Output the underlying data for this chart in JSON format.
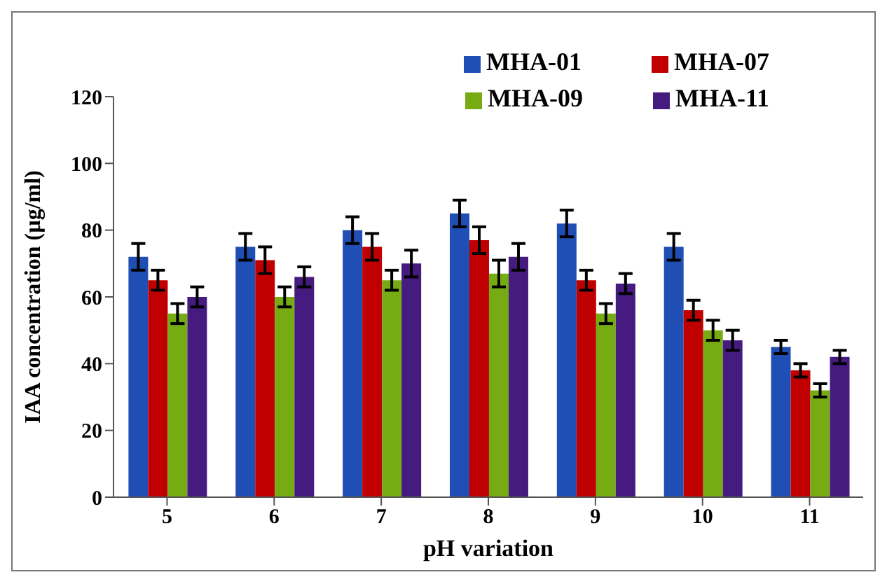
{
  "chart_data": {
    "type": "bar",
    "xlabel": "pH variation",
    "ylabel": "IAA concentration (µg/ml)",
    "categories": [
      "5",
      "6",
      "7",
      "8",
      "9",
      "10",
      "11"
    ],
    "series": [
      {
        "name": "MHA-01",
        "color": "#1f4fb4",
        "values": [
          72,
          75,
          80,
          85,
          82,
          75,
          45
        ],
        "errors": [
          4,
          4,
          4,
          4,
          4,
          4,
          2
        ]
      },
      {
        "name": "MHA-07",
        "color": "#c00000",
        "values": [
          65,
          71,
          75,
          77,
          65,
          56,
          38
        ],
        "errors": [
          3,
          4,
          4,
          4,
          3,
          3,
          2
        ]
      },
      {
        "name": "MHA-09",
        "color": "#77ab13",
        "values": [
          55,
          60,
          65,
          67,
          55,
          50,
          32
        ],
        "errors": [
          3,
          3,
          3,
          4,
          3,
          3,
          2
        ]
      },
      {
        "name": "MHA-11",
        "color": "#451b80",
        "values": [
          60,
          66,
          70,
          72,
          64,
          47,
          42
        ],
        "errors": [
          3,
          3,
          4,
          4,
          3,
          3,
          2
        ]
      }
    ],
    "ylim": [
      0,
      120
    ],
    "yticks": [
      0,
      20,
      40,
      60,
      80,
      100,
      120
    ],
    "grid": false,
    "legend": "top right"
  }
}
